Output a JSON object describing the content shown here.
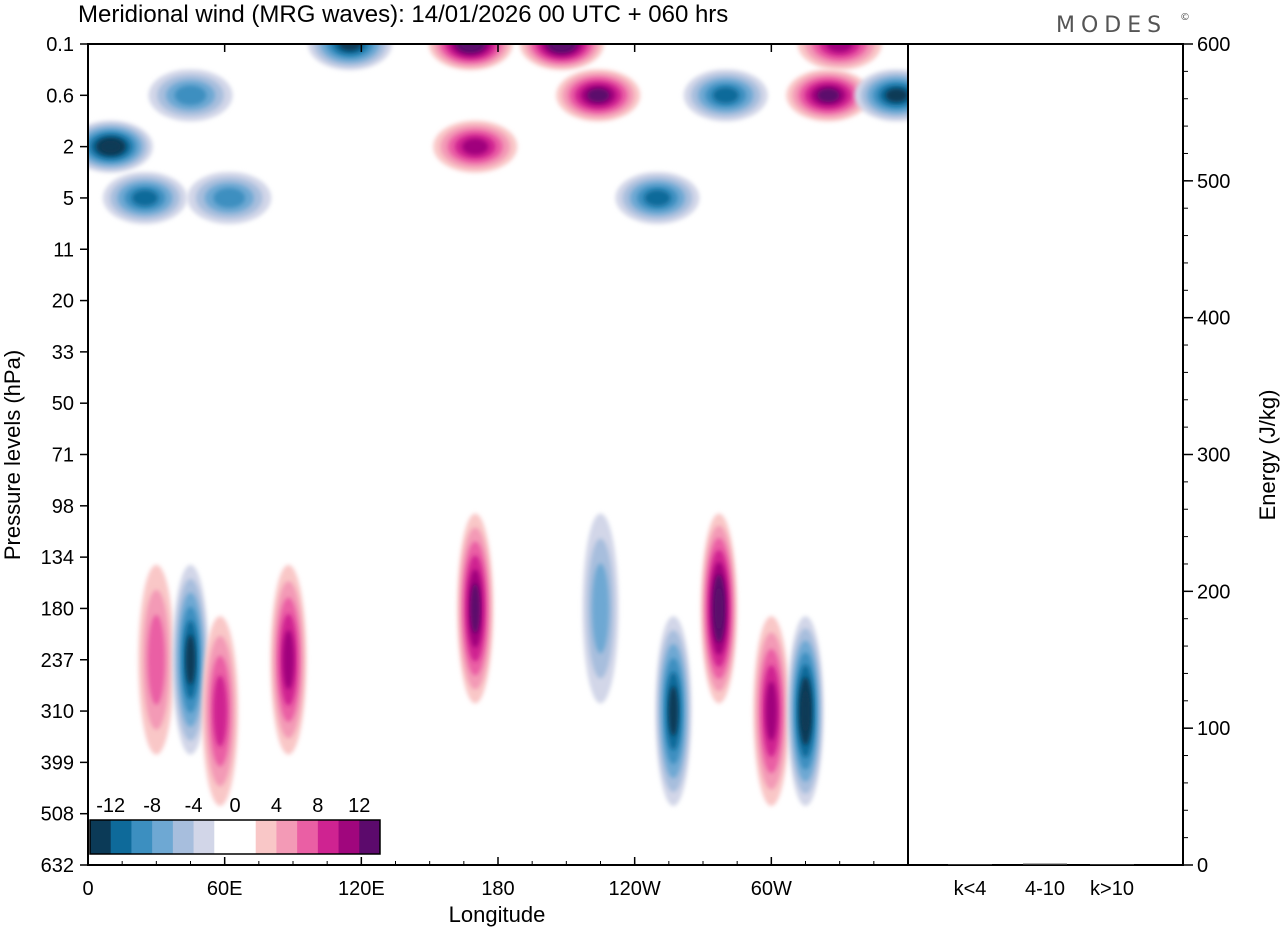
{
  "title": "Meridional wind (MRG waves):  14/01/2026  00 UTC  + 060 hrs",
  "brand": "MODES",
  "brand_mark": "©",
  "chart_data": [
    {
      "type": "heatmap",
      "title": "Meridional wind (MRG waves)",
      "xlabel": "Longitude",
      "ylabel": "Pressure levels (hPa)",
      "x_tick_labels": [
        "0",
        "60E",
        "120E",
        "180",
        "120W",
        "60W"
      ],
      "x_tick_values_deg": [
        0,
        60,
        120,
        180,
        240,
        300
      ],
      "xlim": [
        0,
        360
      ],
      "y_tick_labels": [
        "0.1",
        "0.6",
        "2",
        "5",
        "11",
        "20",
        "33",
        "50",
        "71",
        "98",
        "134",
        "180",
        "237",
        "310",
        "399",
        "508",
        "632"
      ],
      "colorbar": {
        "labels": [
          "-12",
          "-8",
          "-4",
          "0",
          "4",
          "8",
          "12"
        ],
        "levels": [
          -14,
          -12,
          -10,
          -8,
          -6,
          -4,
          -2,
          0,
          2,
          4,
          6,
          8,
          10,
          12,
          14
        ],
        "colors": [
          "#0b3a57",
          "#0e6a9a",
          "#3c8fc0",
          "#6ea8d3",
          "#a7bedd",
          "#d2d6e8",
          "#ffffff",
          "#ffffff",
          "#f9c7c7",
          "#f39ab6",
          "#ea5fa4",
          "#cf2391",
          "#a0067d",
          "#5c0a6c"
        ]
      },
      "features": [
        {
          "lon": 10,
          "level": "2",
          "value": -14
        },
        {
          "lon": 45,
          "level": "0.6",
          "value": -8
        },
        {
          "lon": 25,
          "level": "5",
          "value": -9
        },
        {
          "lon": 62,
          "level": "5",
          "value": -7
        },
        {
          "lon": 115,
          "level": "0.1",
          "value": -12
        },
        {
          "lon": 168,
          "level": "0.1",
          "value": 14
        },
        {
          "lon": 208,
          "level": "0.1",
          "value": 13
        },
        {
          "lon": 170,
          "level": "2",
          "value": 10
        },
        {
          "lon": 224,
          "level": "0.6",
          "value": 12
        },
        {
          "lon": 280,
          "level": "0.6",
          "value": -10
        },
        {
          "lon": 330,
          "level": "0.1",
          "value": 10
        },
        {
          "lon": 325,
          "level": "0.6",
          "value": 11
        },
        {
          "lon": 355,
          "level": "0.6",
          "value": -12
        },
        {
          "lon": 250,
          "level": "5",
          "value": -9
        },
        {
          "lon": 30,
          "level": "237",
          "value": 6
        },
        {
          "lon": 45,
          "level": "237",
          "value": -12
        },
        {
          "lon": 58,
          "level": "310",
          "value": 8
        },
        {
          "lon": 88,
          "level": "237",
          "value": 9
        },
        {
          "lon": 170,
          "level": "180",
          "value": 11
        },
        {
          "lon": 225,
          "level": "180",
          "value": -6
        },
        {
          "lon": 257,
          "level": "310",
          "value": -11
        },
        {
          "lon": 277,
          "level": "180",
          "value": 13
        },
        {
          "lon": 300,
          "level": "310",
          "value": 10
        },
        {
          "lon": 315,
          "level": "310",
          "value": -13
        }
      ]
    },
    {
      "type": "bar",
      "ylabel": "Energy (J/kg)",
      "categories": [
        "k<4",
        "4-10",
        "k>10"
      ],
      "values": [
        0,
        1,
        0
      ],
      "ylim": [
        0,
        600
      ],
      "y_tick_labels": [
        "0",
        "100",
        "200",
        "300",
        "400",
        "500",
        "600"
      ]
    }
  ]
}
